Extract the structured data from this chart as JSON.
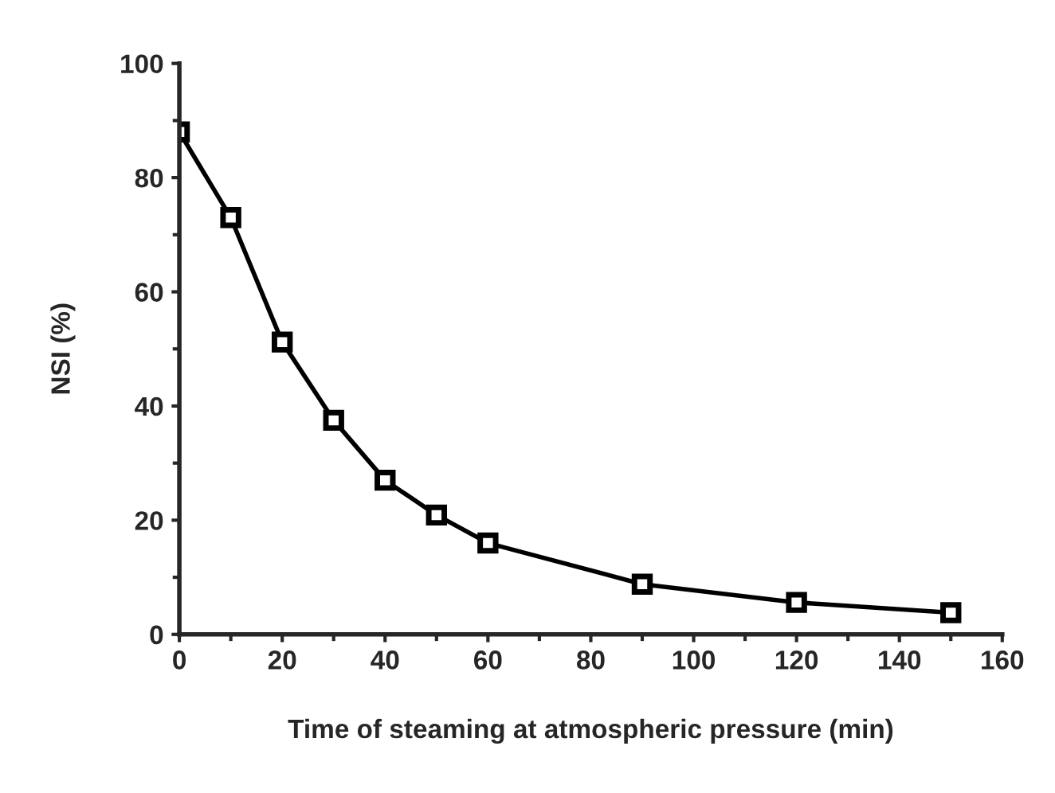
{
  "chart_data": {
    "type": "line",
    "xlabel": "Time of steaming at atmospheric pressure (min)",
    "ylabel": "NSI (%)",
    "x": [
      0,
      10,
      20,
      30,
      40,
      50,
      60,
      90,
      120,
      150
    ],
    "series": [
      {
        "color": "#000000",
        "values": [
          88,
          73,
          51.2,
          37.5,
          27,
          20.9,
          16,
          8.8,
          5.6,
          3.8
        ]
      }
    ],
    "xlim": [
      0,
      160
    ],
    "ylim": [
      0,
      100
    ],
    "xticks": [
      0,
      20,
      40,
      60,
      80,
      100,
      120,
      140,
      160
    ],
    "yticks": [
      0,
      20,
      40,
      60,
      80,
      100
    ],
    "marker": "square",
    "line_style": "solid",
    "grid": false,
    "legend": false
  }
}
